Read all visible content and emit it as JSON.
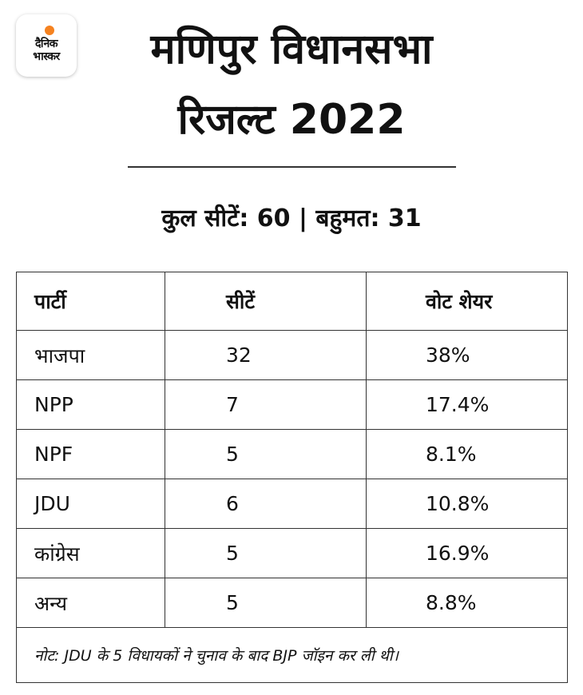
{
  "brand": {
    "line1": "दैनिक",
    "line2": "भास्कर",
    "accent": "#f58220"
  },
  "title": {
    "line1": "मणिपुर विधानसभा",
    "line2": "रिजल्ट 2022"
  },
  "summary": "कुल सीटें: 60 | बहुमत: 31",
  "table": {
    "headers": [
      "पार्टी",
      "सीटें",
      "वोट शेयर"
    ],
    "rows": [
      {
        "party": "भाजपा",
        "seats": "32",
        "share": "38%"
      },
      {
        "party": "NPP",
        "seats": "7",
        "share": "17.4%"
      },
      {
        "party": "NPF",
        "seats": "5",
        "share": "8.1%"
      },
      {
        "party": "JDU",
        "seats": "6",
        "share": "10.8%"
      },
      {
        "party": "कांग्रेस",
        "seats": "5",
        "share": "16.9%"
      },
      {
        "party": "अन्य",
        "seats": "5",
        "share": "8.8%"
      }
    ],
    "note": "नोट: JDU के 5 विधायकों ने चुनाव के बाद BJP जॉइन कर ली थी।"
  }
}
